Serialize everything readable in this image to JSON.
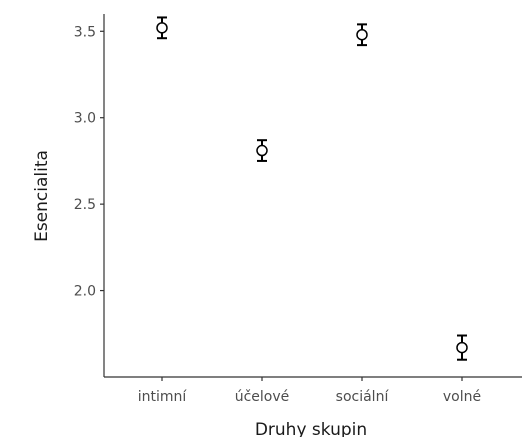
{
  "chart_data": {
    "type": "scatter",
    "xlabel": "Druhy skupin",
    "ylabel": "Esencialita",
    "categories": [
      "intimní",
      "účelové",
      "sociální",
      "volné"
    ],
    "series": [
      {
        "values": [
          3.52,
          2.81,
          3.48,
          1.67
        ],
        "error_low": [
          3.46,
          2.75,
          3.42,
          1.6
        ],
        "error_high": [
          3.58,
          2.87,
          3.54,
          1.74
        ]
      }
    ],
    "yticks": [
      2.0,
      2.5,
      3.0,
      3.5
    ],
    "ytick_labels": [
      "2.0",
      "2.5",
      "3.0",
      "3.5"
    ],
    "ylim": [
      1.5,
      3.6
    ],
    "grid": false,
    "marker": "open-circle"
  }
}
